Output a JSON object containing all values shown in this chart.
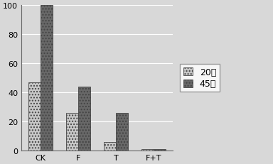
{
  "categories": [
    "CK",
    "F",
    "T",
    "F+T"
  ],
  "series": [
    {
      "label": "20天",
      "values": [
        47,
        26,
        6,
        1
      ],
      "color": "#c8c8c8",
      "hatch": "...."
    },
    {
      "label": "45天",
      "values": [
        100,
        44,
        26,
        1
      ],
      "color": "#686868",
      "hatch": "...."
    }
  ],
  "ylim": [
    0,
    100
  ],
  "yticks": [
    0,
    20,
    40,
    60,
    80,
    100
  ],
  "background_color": "#d8d8d8",
  "plot_bg_color": "#d8d8d8",
  "bar_width": 0.32,
  "figsize": [
    3.84,
    2.32
  ],
  "dpi": 100,
  "tick_fontsize": 8,
  "legend_fontsize": 9
}
